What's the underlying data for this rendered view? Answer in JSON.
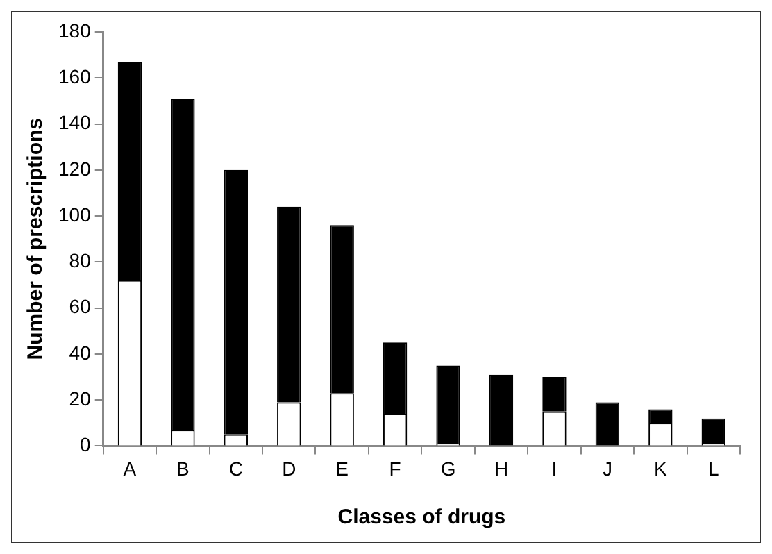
{
  "chart_data": {
    "type": "bar",
    "stacked": true,
    "xlabel": "Classes of drugs",
    "ylabel": "Number of prescriptions",
    "categories": [
      "A",
      "B",
      "C",
      "D",
      "E",
      "F",
      "G",
      "H",
      "I",
      "J",
      "K",
      "L"
    ],
    "series": [
      {
        "color": "#ffffff",
        "values": [
          72,
          7,
          5,
          19,
          23,
          14,
          1,
          0,
          15,
          0,
          10,
          1
        ]
      },
      {
        "color": "#000000",
        "values": [
          95,
          144,
          115,
          85,
          73,
          31,
          34,
          31,
          15,
          19,
          6,
          11
        ]
      }
    ],
    "ylim": [
      0,
      180
    ],
    "yticks": [
      0,
      20,
      40,
      60,
      80,
      100,
      120,
      140,
      160,
      180
    ],
    "grid": false,
    "legend": false
  }
}
